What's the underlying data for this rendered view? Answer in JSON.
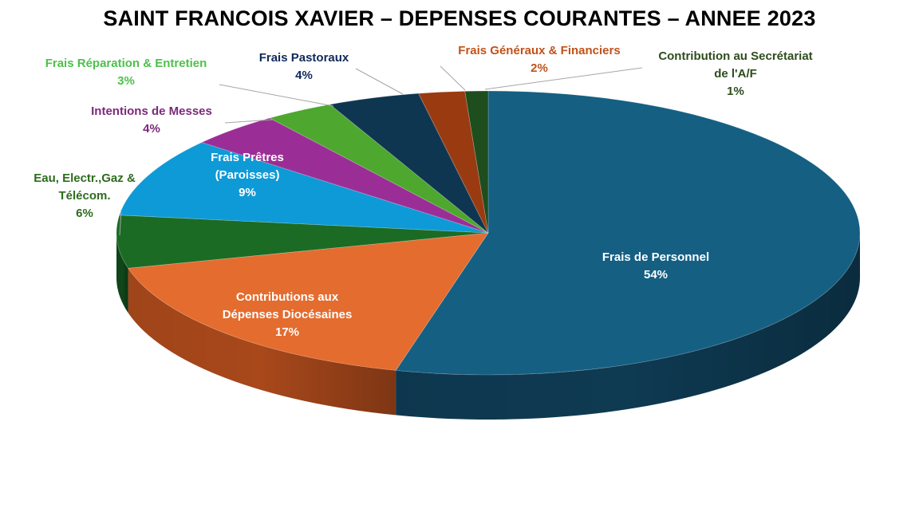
{
  "chart_data": {
    "type": "pie",
    "title": "SAINT FRANCOIS XAVIER – DEPENSES COURANTES – ANNEE 2023",
    "slices": [
      {
        "name": "Frais de Personnel",
        "label_lines": [
          "Frais de Personnel"
        ],
        "value": 54,
        "pct_label": "54%",
        "color": "#155F83",
        "side_color": "#0E3A52",
        "label_color": "#FFFFFF"
      },
      {
        "name": "Contributions aux Dépenses Diocésaines",
        "label_lines": [
          "Contributions aux",
          "Dépenses Diocésaines"
        ],
        "value": 17,
        "pct_label": "17%",
        "color": "#E46C2F",
        "side_color": "#A8481B",
        "label_color": "#FFFFFF"
      },
      {
        "name": "Eau, Electr.,Gaz & Télécom.",
        "label_lines": [
          "Eau, Electr.,Gaz &",
          "Télécom."
        ],
        "value": 6,
        "pct_label": "6%",
        "color": "#1B6B25",
        "side_color": "#10461A",
        "label_color": "#2E6B1E"
      },
      {
        "name": "Frais Prêtres (Paroisses)",
        "label_lines": [
          "Frais Prêtres",
          "(Paroisses)"
        ],
        "value": 9,
        "pct_label": "9%",
        "color": "#0E9AD6",
        "side_color": "#0A6F9C",
        "label_color": "#FFFFFF"
      },
      {
        "name": "Intentions de Messes",
        "label_lines": [
          "Intentions de Messes"
        ],
        "value": 4,
        "pct_label": "4%",
        "color": "#9B2E96",
        "side_color": "#6A1F66",
        "label_color": "#7A2A78"
      },
      {
        "name": "Frais Réparation & Entretien",
        "label_lines": [
          "Frais Réparation & Entretien"
        ],
        "value": 3,
        "pct_label": "3%",
        "color": "#4EA72E",
        "side_color": "#357421",
        "label_color": "#4CC14A"
      },
      {
        "name": "Frais Pastoraux",
        "label_lines": [
          "Frais Pastoraux"
        ],
        "value": 4,
        "pct_label": "4%",
        "color": "#0E3650",
        "side_color": "#082233",
        "label_color": "#0E2A5C"
      },
      {
        "name": "Frais Généraux & Financiers",
        "label_lines": [
          "Frais Généraux & Financiers"
        ],
        "value": 2,
        "pct_label": "2%",
        "color": "#9A3A10",
        "side_color": "#6A280A",
        "label_color": "#C0521A"
      },
      {
        "name": "Contribution au Secrétariat de l'A/F",
        "label_lines": [
          "Contribution au Secrétariat",
          "de l'A/F"
        ],
        "value": 1,
        "pct_label": "1%",
        "color": "#1E4D1E",
        "side_color": "#123312",
        "label_color": "#2E4D1E"
      }
    ],
    "legend": "none",
    "data_labels": "name and percentage",
    "style": "3D pie"
  }
}
